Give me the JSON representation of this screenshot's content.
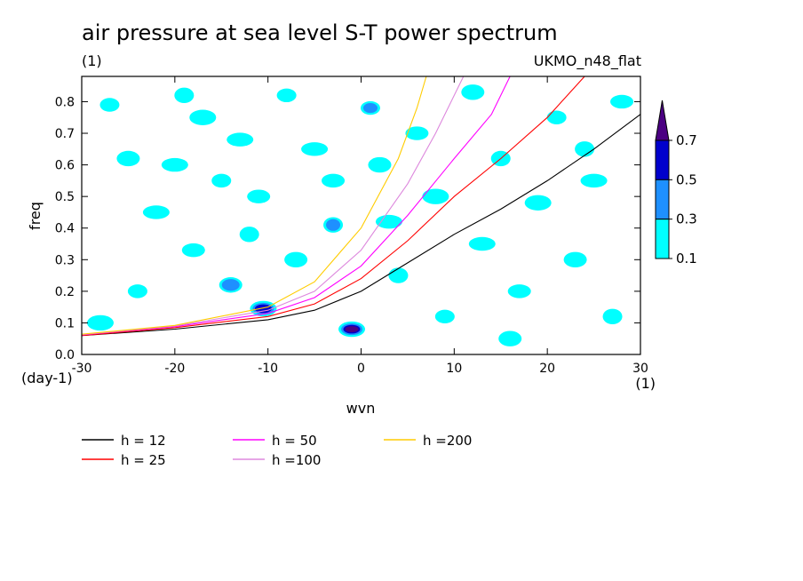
{
  "chart_data": {
    "type": "heatmap",
    "title": "air pressure at sea level S-T power spectrum",
    "unit_label": "(1)",
    "model_label": "UKMO_n48_flat",
    "xlabel": "wvn",
    "ylabel": "freq",
    "x_unit": "(1)",
    "y_unit": "(day-1)",
    "xlim": [
      -30,
      30
    ],
    "ylim": [
      0,
      0.88
    ],
    "x_ticks": [
      "-30",
      "-20",
      "-10",
      "0",
      "10",
      "20",
      "30"
    ],
    "x_tick_values": [
      -30,
      -20,
      -10,
      0,
      10,
      20,
      30
    ],
    "y_ticks": [
      "0.0",
      "0.1",
      "0.2",
      "0.3",
      "0.4",
      "0.5",
      "0.6",
      "0.7",
      "0.8"
    ],
    "y_tick_values": [
      0,
      0.1,
      0.2,
      0.3,
      0.4,
      0.5,
      0.6,
      0.7,
      0.8
    ],
    "colorbar": {
      "levels": [
        "0.1",
        "0.3",
        "0.5",
        "0.7"
      ],
      "colors": [
        "#00ffff",
        "#1e90ff",
        "#0000cd",
        "#4b0082"
      ]
    },
    "dispersion_curves": [
      {
        "name": "h = 12",
        "color": "#000000",
        "points": [
          [
            -30,
            0.06
          ],
          [
            -20,
            0.08
          ],
          [
            -10,
            0.11
          ],
          [
            -5,
            0.14
          ],
          [
            0,
            0.2
          ],
          [
            5,
            0.29
          ],
          [
            10,
            0.38
          ],
          [
            15,
            0.46
          ],
          [
            20,
            0.55
          ],
          [
            25,
            0.65
          ],
          [
            30,
            0.76
          ]
        ]
      },
      {
        "name": "h = 25",
        "color": "#ff0000",
        "points": [
          [
            -30,
            0.06
          ],
          [
            -20,
            0.085
          ],
          [
            -10,
            0.12
          ],
          [
            -5,
            0.16
          ],
          [
            0,
            0.24
          ],
          [
            5,
            0.36
          ],
          [
            10,
            0.5
          ],
          [
            15,
            0.62
          ],
          [
            20,
            0.75
          ],
          [
            24,
            0.88
          ]
        ]
      },
      {
        "name": "h = 50",
        "color": "#ff00ff",
        "points": [
          [
            -30,
            0.062
          ],
          [
            -20,
            0.088
          ],
          [
            -10,
            0.13
          ],
          [
            -5,
            0.18
          ],
          [
            0,
            0.28
          ],
          [
            5,
            0.44
          ],
          [
            10,
            0.62
          ],
          [
            14,
            0.76
          ],
          [
            16,
            0.88
          ]
        ]
      },
      {
        "name": "h =100",
        "color": "#dd88dd",
        "points": [
          [
            -30,
            0.063
          ],
          [
            -20,
            0.09
          ],
          [
            -10,
            0.14
          ],
          [
            -5,
            0.2
          ],
          [
            0,
            0.33
          ],
          [
            5,
            0.54
          ],
          [
            8,
            0.7
          ],
          [
            11,
            0.88
          ]
        ]
      },
      {
        "name": "h =200",
        "color": "#ffcc00",
        "points": [
          [
            -30,
            0.064
          ],
          [
            -20,
            0.092
          ],
          [
            -10,
            0.15
          ],
          [
            -5,
            0.23
          ],
          [
            0,
            0.4
          ],
          [
            4,
            0.62
          ],
          [
            6,
            0.78
          ],
          [
            7,
            0.88
          ]
        ]
      }
    ],
    "features": [
      {
        "x": -27,
        "y": 0.79,
        "level": 0
      },
      {
        "x": -25,
        "y": 0.62,
        "level": 0
      },
      {
        "x": -22,
        "y": 0.45,
        "level": 0
      },
      {
        "x": -19,
        "y": 0.82,
        "level": 0
      },
      {
        "x": -18,
        "y": 0.33,
        "level": 0
      },
      {
        "x": -17,
        "y": 0.75,
        "level": 0
      },
      {
        "x": -15,
        "y": 0.55,
        "level": 0
      },
      {
        "x": -14,
        "y": 0.22,
        "level": 1
      },
      {
        "x": -13,
        "y": 0.68,
        "level": 0
      },
      {
        "x": -12,
        "y": 0.38,
        "level": 0
      },
      {
        "x": -11,
        "y": 0.5,
        "level": 0
      },
      {
        "x": -10.5,
        "y": 0.145,
        "level": 2
      },
      {
        "x": -8,
        "y": 0.82,
        "level": 0
      },
      {
        "x": -7,
        "y": 0.3,
        "level": 0
      },
      {
        "x": -5,
        "y": 0.65,
        "level": 0
      },
      {
        "x": -3,
        "y": 0.41,
        "level": 1
      },
      {
        "x": -3,
        "y": 0.55,
        "level": 0
      },
      {
        "x": -1,
        "y": 0.08,
        "level": 3
      },
      {
        "x": 1,
        "y": 0.78,
        "level": 1
      },
      {
        "x": 2,
        "y": 0.6,
        "level": 0
      },
      {
        "x": 3,
        "y": 0.42,
        "level": 0
      },
      {
        "x": 4,
        "y": 0.25,
        "level": 0
      },
      {
        "x": 6,
        "y": 0.7,
        "level": 0
      },
      {
        "x": 8,
        "y": 0.5,
        "level": 0
      },
      {
        "x": 9,
        "y": 0.12,
        "level": 0
      },
      {
        "x": 12,
        "y": 0.83,
        "level": 0
      },
      {
        "x": 13,
        "y": 0.35,
        "level": 0
      },
      {
        "x": 15,
        "y": 0.62,
        "level": 0
      },
      {
        "x": 17,
        "y": 0.2,
        "level": 0
      },
      {
        "x": 19,
        "y": 0.48,
        "level": 0
      },
      {
        "x": 21,
        "y": 0.75,
        "level": 0
      },
      {
        "x": 23,
        "y": 0.3,
        "level": 0
      },
      {
        "x": 25,
        "y": 0.55,
        "level": 0
      },
      {
        "x": 27,
        "y": 0.12,
        "level": 0
      },
      {
        "x": 28,
        "y": 0.8,
        "level": 0
      },
      {
        "x": -28,
        "y": 0.1,
        "level": 0
      },
      {
        "x": -24,
        "y": 0.2,
        "level": 0
      },
      {
        "x": 16,
        "y": 0.05,
        "level": 0
      },
      {
        "x": -20,
        "y": 0.6,
        "level": 0
      },
      {
        "x": 24,
        "y": 0.65,
        "level": 0
      }
    ],
    "grid": false,
    "legend_placement": "bottom"
  }
}
